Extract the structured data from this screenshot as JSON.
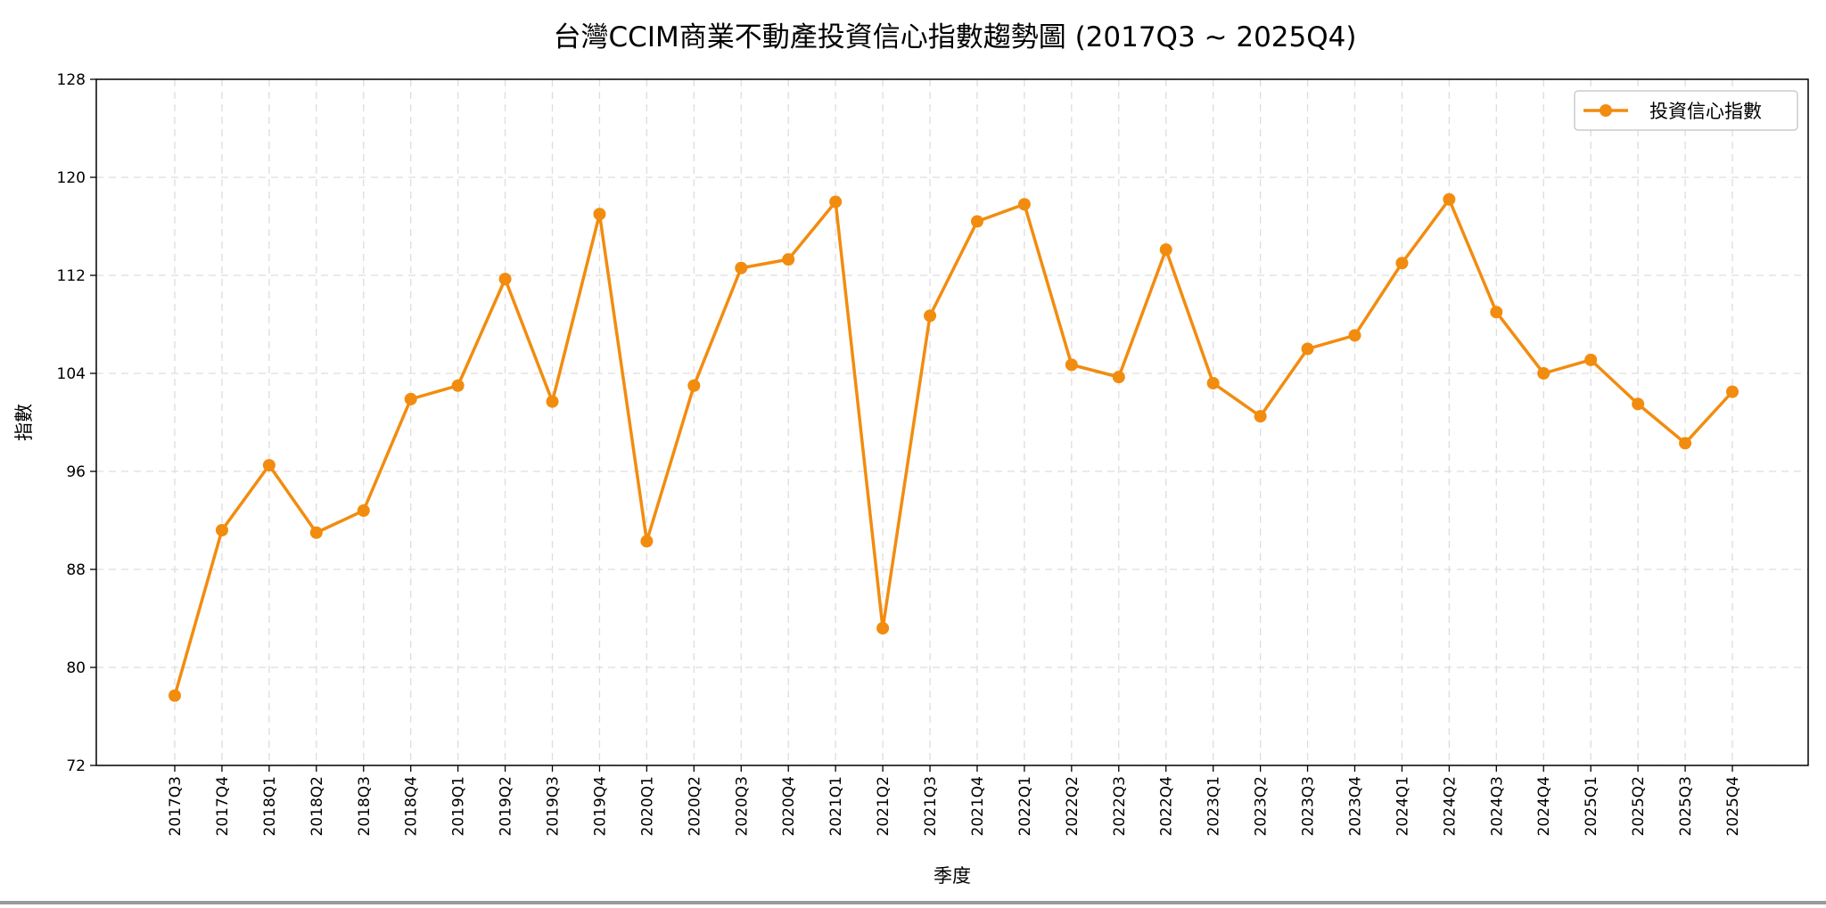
{
  "chart_data": {
    "type": "line",
    "title": "台灣CCIM商業不動產投資信心指數趨勢圖 (2017Q3 ~ 2025Q4)",
    "xlabel": "季度",
    "ylabel": "指數",
    "ylim": [
      72,
      128
    ],
    "yticks": [
      72,
      80,
      88,
      96,
      104,
      112,
      120,
      128
    ],
    "grid": true,
    "legend_position": "top-right",
    "categories": [
      "2017Q3",
      "2017Q4",
      "2018Q1",
      "2018Q2",
      "2018Q3",
      "2018Q4",
      "2019Q1",
      "2019Q2",
      "2019Q3",
      "2019Q4",
      "2020Q1",
      "2020Q2",
      "2020Q3",
      "2020Q4",
      "2021Q1",
      "2021Q2",
      "2021Q3",
      "2021Q4",
      "2022Q1",
      "2022Q2",
      "2022Q3",
      "2022Q4",
      "2023Q1",
      "2023Q2",
      "2023Q3",
      "2023Q4",
      "2024Q1",
      "2024Q2",
      "2024Q3",
      "2024Q4",
      "2025Q1",
      "2025Q2",
      "2025Q3",
      "2025Q4"
    ],
    "series": [
      {
        "name": "投資信心指數",
        "color": "#f28c0f",
        "values": [
          77.7,
          91.2,
          96.5,
          91.0,
          92.8,
          101.9,
          103.0,
          111.7,
          101.7,
          117.0,
          90.3,
          103.0,
          112.6,
          113.3,
          118.0,
          83.2,
          108.7,
          116.4,
          117.8,
          104.7,
          103.7,
          114.1,
          103.2,
          100.5,
          106.0,
          107.1,
          113.0,
          118.2,
          109.0,
          104.0,
          105.1,
          101.5,
          98.3,
          102.5
        ]
      }
    ]
  }
}
